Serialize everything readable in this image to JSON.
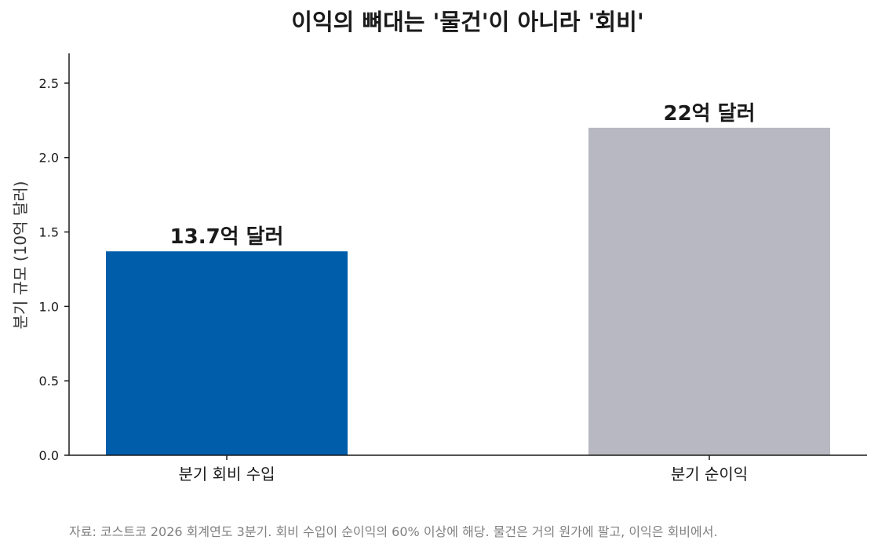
{
  "chart_data": {
    "type": "bar",
    "title": "이익의 뼈대는 '물건'이 아니라 '회비'",
    "ylabel": "분기 규모 (10억 달러)",
    "xlabel": "",
    "categories": [
      "분기 회비 수입",
      "분기 순이익"
    ],
    "values": [
      1.37,
      2.2
    ],
    "data_labels": [
      "13.7억 달러",
      "22억 달러"
    ],
    "colors": [
      "#005DAA",
      "#B8B8C2"
    ],
    "ylim": [
      0,
      2.7
    ],
    "yticks": [
      "0.0",
      "0.5",
      "1.0",
      "1.5",
      "2.0",
      "2.5"
    ],
    "grid": false,
    "legend": "none"
  },
  "footer": {
    "source": "자료: 코스트코 2026 회계연도 3분기. 회비 수입이 순이익의 60% 이상에 해당. 물건은 거의 원가에 팔고, 이익은 회비에서."
  }
}
